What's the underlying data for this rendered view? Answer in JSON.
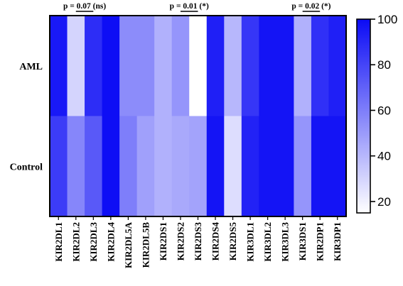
{
  "chart_data": {
    "type": "heatmap",
    "rows": [
      "AML",
      "Control"
    ],
    "columns": [
      "KIR2DL1",
      "KIR2DL2",
      "KIR2DL3",
      "KIR2DL4",
      "KIR2DL5A",
      "KIR2DL5B",
      "KIR2DS1",
      "KIR2DS2",
      "KIR2DS3",
      "KIR2DS4",
      "KIR2DS5",
      "KIR3DL1",
      "KIR3DL2",
      "KIR3DL3",
      "KIR3DS1",
      "KIR2DP1",
      "KIR3DP1"
    ],
    "values": [
      [
        95,
        30,
        88,
        99,
        55,
        55,
        42,
        52,
        15,
        93,
        40,
        85,
        97,
        97,
        42,
        87,
        93
      ],
      [
        83,
        57,
        73,
        99,
        60,
        48,
        42,
        45,
        47,
        97,
        27,
        92,
        97,
        97,
        52,
        97,
        97
      ]
    ],
    "colorbar": {
      "min": 15,
      "max": 100,
      "ticks": [
        "20",
        "40",
        "60",
        "80",
        "100"
      ],
      "low_color": "#ffffff",
      "high_color": "#0b0bf5"
    },
    "annotations": [
      {
        "text": "p = 0.07 (ns)",
        "from": "KIR2DL2",
        "to": "KIR2DL3"
      },
      {
        "text": "p = 0.01 (*)",
        "from": "KIR2DS2",
        "to": "KIR2DS3"
      },
      {
        "text": "p = 0.02 (*)",
        "from": "KIR3DS1",
        "to": "KIR2DP1"
      }
    ]
  }
}
